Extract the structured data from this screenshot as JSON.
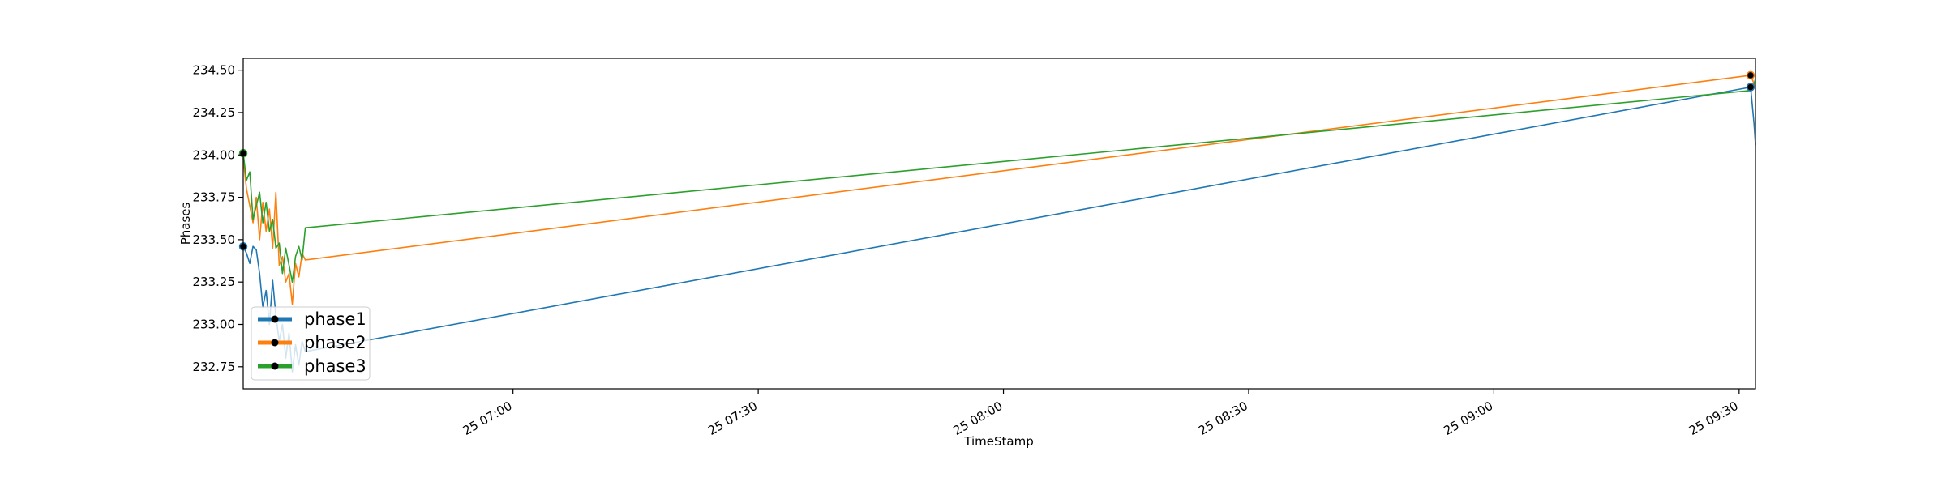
{
  "chart_data": {
    "type": "line",
    "title": "",
    "xlabel": "TimeStamp",
    "ylabel": "Phases",
    "x_axis": {
      "kind": "time",
      "range": [
        "2021-01-25 06:27:00",
        "2021-01-25 09:32:00"
      ],
      "ticks": [
        {
          "time": "2021-01-25 07:00",
          "label": "25 07:00"
        },
        {
          "time": "2021-01-25 07:30",
          "label": "25 07:30"
        },
        {
          "time": "2021-01-25 08:00",
          "label": "25 08:00"
        },
        {
          "time": "2021-01-25 08:30",
          "label": "25 08:30"
        },
        {
          "time": "2021-01-25 09:00",
          "label": "25 09:00"
        },
        {
          "time": "2021-01-25 09:30",
          "label": "25 09:30"
        }
      ]
    },
    "y_axis": {
      "range": [
        232.62,
        234.57
      ],
      "ticks": [
        {
          "value": 232.75,
          "label": "232.75"
        },
        {
          "value": 233.0,
          "label": "233.00"
        },
        {
          "value": 233.25,
          "label": "233.25"
        },
        {
          "value": 233.5,
          "label": "233.50"
        },
        {
          "value": 233.75,
          "label": "233.75"
        },
        {
          "value": 234.0,
          "label": "234.00"
        },
        {
          "value": 234.25,
          "label": "234.25"
        },
        {
          "value": 234.5,
          "label": "234.50"
        }
      ]
    },
    "grid": false,
    "legend": {
      "placement": "lower-left"
    },
    "series": [
      {
        "name": "phase1",
        "color": "#1f77b4",
        "points": [
          [
            "2021-01-25 06:27:00",
            233.46
          ],
          [
            "2021-01-25 06:27:24",
            233.42
          ],
          [
            "2021-01-25 06:27:48",
            233.36
          ],
          [
            "2021-01-25 06:28:12",
            233.46
          ],
          [
            "2021-01-25 06:28:36",
            233.44
          ],
          [
            "2021-01-25 06:29:00",
            233.3
          ],
          [
            "2021-01-25 06:29:24",
            233.1
          ],
          [
            "2021-01-25 06:29:48",
            233.2
          ],
          [
            "2021-01-25 06:30:12",
            233.0
          ],
          [
            "2021-01-25 06:30:36",
            233.26
          ],
          [
            "2021-01-25 06:31:00",
            233.05
          ],
          [
            "2021-01-25 06:31:24",
            232.9
          ],
          [
            "2021-01-25 06:31:48",
            233.0
          ],
          [
            "2021-01-25 06:32:12",
            232.8
          ],
          [
            "2021-01-25 06:32:36",
            232.95
          ],
          [
            "2021-01-25 06:33:00",
            232.72
          ],
          [
            "2021-01-25 06:33:24",
            232.88
          ],
          [
            "2021-01-25 06:33:48",
            232.76
          ],
          [
            "2021-01-25 06:34:12",
            232.9
          ],
          [
            "2021-01-25 06:34:36",
            232.84
          ],
          [
            "2021-01-25 09:31:24",
            234.4
          ],
          [
            "2021-01-25 09:31:50",
            234.18
          ],
          [
            "2021-01-25 09:32:00",
            234.06
          ]
        ]
      },
      {
        "name": "phase2",
        "color": "#ff7f0e",
        "points": [
          [
            "2021-01-25 06:27:00",
            233.98
          ],
          [
            "2021-01-25 06:27:24",
            233.8
          ],
          [
            "2021-01-25 06:27:48",
            233.7
          ],
          [
            "2021-01-25 06:28:12",
            233.6
          ],
          [
            "2021-01-25 06:28:36",
            233.75
          ],
          [
            "2021-01-25 06:29:00",
            233.5
          ],
          [
            "2021-01-25 06:29:24",
            233.72
          ],
          [
            "2021-01-25 06:29:48",
            233.55
          ],
          [
            "2021-01-25 06:30:12",
            233.68
          ],
          [
            "2021-01-25 06:30:36",
            233.45
          ],
          [
            "2021-01-25 06:31:00",
            233.78
          ],
          [
            "2021-01-25 06:31:24",
            233.35
          ],
          [
            "2021-01-25 06:31:48",
            233.4
          ],
          [
            "2021-01-25 06:32:12",
            233.25
          ],
          [
            "2021-01-25 06:32:36",
            233.3
          ],
          [
            "2021-01-25 06:33:00",
            233.12
          ],
          [
            "2021-01-25 06:33:24",
            233.36
          ],
          [
            "2021-01-25 06:33:48",
            233.28
          ],
          [
            "2021-01-25 06:34:12",
            233.42
          ],
          [
            "2021-01-25 06:34:36",
            233.38
          ],
          [
            "2021-01-25 09:31:24",
            234.47
          ],
          [
            "2021-01-25 09:31:50",
            234.42
          ],
          [
            "2021-01-25 09:32:00",
            234.4
          ]
        ]
      },
      {
        "name": "phase3",
        "color": "#2ca02c",
        "points": [
          [
            "2021-01-25 06:27:00",
            234.01
          ],
          [
            "2021-01-25 06:27:24",
            233.85
          ],
          [
            "2021-01-25 06:27:48",
            233.9
          ],
          [
            "2021-01-25 06:28:12",
            233.62
          ],
          [
            "2021-01-25 06:28:36",
            233.7
          ],
          [
            "2021-01-25 06:29:00",
            233.78
          ],
          [
            "2021-01-25 06:29:24",
            233.6
          ],
          [
            "2021-01-25 06:29:48",
            233.72
          ],
          [
            "2021-01-25 06:30:12",
            233.55
          ],
          [
            "2021-01-25 06:30:36",
            233.62
          ],
          [
            "2021-01-25 06:31:00",
            233.45
          ],
          [
            "2021-01-25 06:31:24",
            233.48
          ],
          [
            "2021-01-25 06:31:48",
            233.3
          ],
          [
            "2021-01-25 06:32:12",
            233.45
          ],
          [
            "2021-01-25 06:32:36",
            233.35
          ],
          [
            "2021-01-25 06:33:00",
            233.25
          ],
          [
            "2021-01-25 06:33:24",
            233.4
          ],
          [
            "2021-01-25 06:33:48",
            233.46
          ],
          [
            "2021-01-25 06:34:12",
            233.38
          ],
          [
            "2021-01-25 06:34:36",
            233.57
          ],
          [
            "2021-01-25 09:31:24",
            234.38
          ],
          [
            "2021-01-25 09:31:50",
            234.42
          ],
          [
            "2021-01-25 09:32:00",
            234.45
          ]
        ]
      }
    ],
    "markers": [
      {
        "series": "phase1",
        "time": "2021-01-25 06:27:00",
        "value": 233.46
      },
      {
        "series": "phase3",
        "time": "2021-01-25 06:27:00",
        "value": 234.01
      },
      {
        "series": "phase1",
        "time": "2021-01-25 09:31:24",
        "value": 234.4
      },
      {
        "series": "phase2",
        "time": "2021-01-25 09:31:24",
        "value": 234.47
      }
    ]
  }
}
